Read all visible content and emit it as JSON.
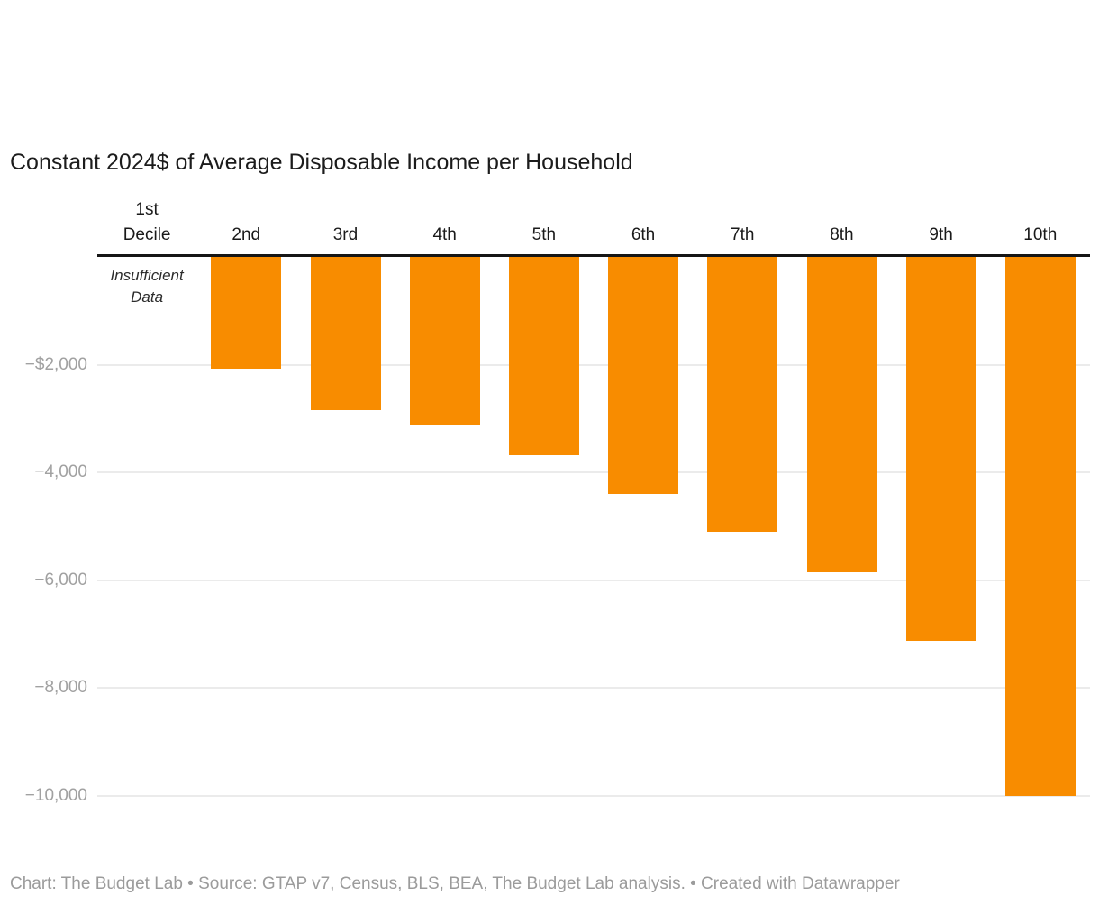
{
  "chart_data": {
    "type": "bar",
    "title": "Constant 2024$ of Average Disposable Income per Household",
    "categories": [
      "1st\nDecile",
      "2nd",
      "3rd",
      "4th",
      "5th",
      "6th",
      "7th",
      "8th",
      "9th",
      "10th"
    ],
    "values": [
      null,
      -2080,
      -2840,
      -3130,
      -3680,
      -4400,
      -5100,
      -5850,
      -7130,
      -10000
    ],
    "missing_data_label": "Insufficient\nData",
    "bar_color": "#F88C00",
    "ylim": [
      -10000,
      0
    ],
    "grid": true,
    "legend": false,
    "yticks": [
      {
        "value": -2000,
        "label": "−$2,000"
      },
      {
        "value": -4000,
        "label": "−4,000"
      },
      {
        "value": -6000,
        "label": "−6,000"
      },
      {
        "value": -8000,
        "label": "−8,000"
      },
      {
        "value": -10000,
        "label": "−10,000"
      }
    ],
    "attribution": "Chart: The Budget Lab • Source: GTAP v7, Census, BLS, BEA, The Budget Lab analysis. • Created with Datawrapper"
  }
}
